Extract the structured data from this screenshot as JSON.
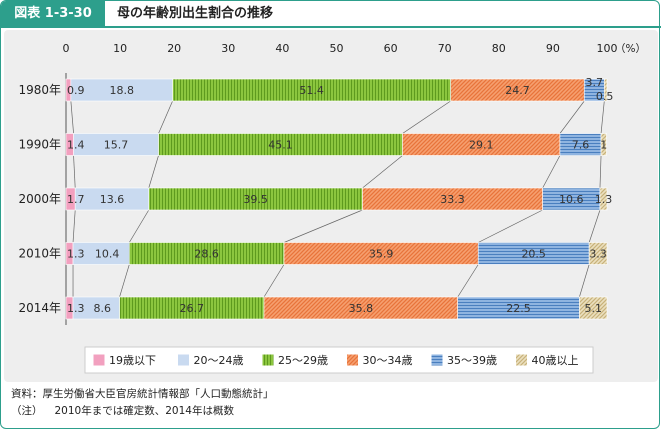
{
  "figure_label": "図表 1-3-30",
  "figure_title": "母の年齢別出生割合の推移",
  "source": "資料：厚生労働省大臣官房統計情報部「人口動態統計」",
  "note_label": "（注）",
  "note_text": "2010年までは確定数、2014年は概数",
  "chart_data": {
    "type": "bar",
    "orientation": "horizontal",
    "stacked": true,
    "title": "母の年齢別出生割合の推移",
    "unit": "（%）",
    "xlim": [
      0,
      100
    ],
    "xticks": [
      0,
      10,
      20,
      30,
      40,
      50,
      60,
      70,
      80,
      90,
      100
    ],
    "categories": [
      "1980年",
      "1990年",
      "2000年",
      "2010年",
      "2014年"
    ],
    "series": [
      {
        "name": "19歳以下",
        "color": "#f2a0bf",
        "pattern": "solid",
        "values": [
          0.9,
          1.4,
          1.7,
          1.3,
          1.3
        ]
      },
      {
        "name": "20～24歳",
        "color": "#c9daf0",
        "pattern": "solid",
        "values": [
          18.8,
          15.7,
          13.6,
          10.4,
          8.6
        ]
      },
      {
        "name": "25～29歳",
        "color": "#8cc63f",
        "pattern": "vertical",
        "values": [
          51.4,
          45.1,
          39.5,
          28.6,
          26.7
        ]
      },
      {
        "name": "30～34歳",
        "color": "#f08a50",
        "pattern": "diagonal",
        "values": [
          24.7,
          29.1,
          33.3,
          35.9,
          35.8
        ]
      },
      {
        "name": "35～39歳",
        "color": "#5b8fc9",
        "pattern": "horizontal",
        "values": [
          3.7,
          7.6,
          10.6,
          20.5,
          22.5
        ]
      },
      {
        "name": "40歳以上",
        "color": "#d9c89c",
        "pattern": "diagonal-light",
        "values": [
          0.5,
          1.0,
          1.3,
          3.3,
          5.1
        ]
      }
    ],
    "legend_position": "bottom"
  }
}
